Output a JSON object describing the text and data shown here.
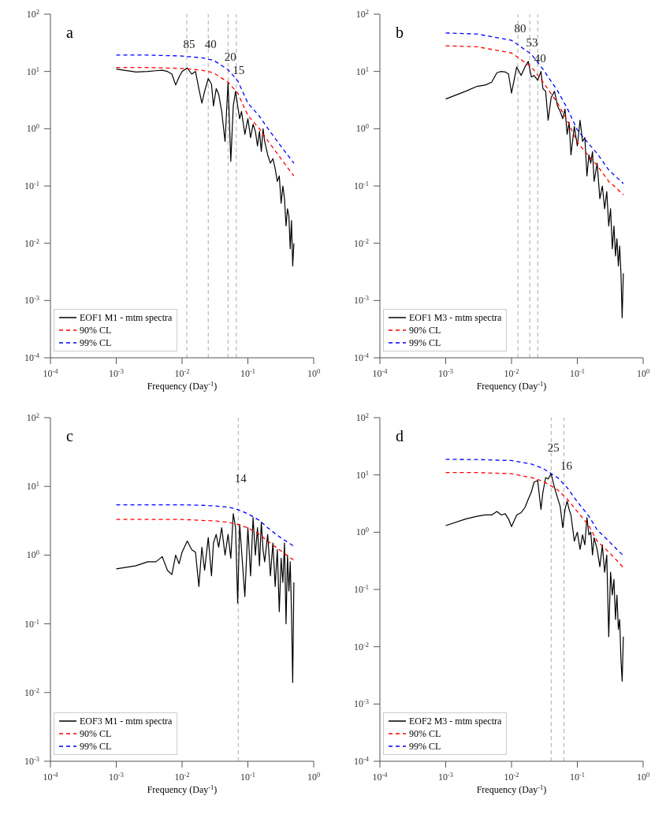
{
  "chart_data": [
    {
      "type": "line",
      "annotations": [
        "a",
        {
          "text": "85",
          "x": 0.0118,
          "y": 30
        },
        {
          "text": "40",
          "x": 0.025,
          "y": 30
        },
        {
          "text": "20",
          "x": 0.05,
          "y": 18
        },
        {
          "text": "15",
          "x": 0.0667,
          "y": 10.5
        }
      ],
      "xlabel": "Frequency (Day$^{-1}$)",
      "log": "xy",
      "grid": false,
      "legend": "bottom left",
      "xlim": [
        0.0001,
        1
      ],
      "xticks": [
        {
          "value": 0.0001,
          "label": "10$^{-4}$"
        },
        {
          "value": 0.001,
          "label": "10$^{-3}$"
        },
        {
          "value": 0.01,
          "label": "10$^{-2}$"
        },
        {
          "value": 0.1,
          "label": "10$^{-1}$"
        },
        {
          "value": 1,
          "label": "10$^{0}$"
        }
      ],
      "ylim": [
        0.0001,
        100
      ],
      "yticks": [
        {
          "value": 0.0001,
          "label": "10$^{-4}$"
        },
        {
          "value": 0.001,
          "label": "10$^{-3}$"
        },
        {
          "value": 0.01,
          "label": "10$^{-2}$"
        },
        {
          "value": 0.1,
          "label": "10$^{-1}$"
        },
        {
          "value": 1,
          "label": "10$^{0}$"
        },
        {
          "value": 10,
          "label": "10$^{1}$"
        },
        {
          "value": 100,
          "label": "10$^{2}$"
        }
      ],
      "ref_lines": [
        {
          "axis": "x",
          "value": 0.0118,
          "color": "#aaaaaa",
          "line_style": "dashed"
        },
        {
          "axis": "x",
          "value": 0.025,
          "color": "#aaaaaa",
          "line_style": "dashed"
        },
        {
          "axis": "x",
          "value": 0.05,
          "color": "#aaaaaa",
          "line_style": "dashed"
        },
        {
          "axis": "x",
          "value": 0.0667,
          "color": "#aaaaaa",
          "line_style": "dashed"
        }
      ],
      "series": [
        {
          "name": "EOF1 M1 - mtm spectra",
          "color": "#000000",
          "line_style": "solid",
          "x": [
            0.001,
            0.002,
            0.003,
            0.004,
            0.005,
            0.006,
            0.007,
            0.008,
            0.009,
            0.01,
            0.012,
            0.014,
            0.016,
            0.018,
            0.02,
            0.022,
            0.025,
            0.028,
            0.03,
            0.033,
            0.036,
            0.04,
            0.045,
            0.05,
            0.055,
            0.06,
            0.065,
            0.07,
            0.075,
            0.08,
            0.09,
            0.1,
            0.11,
            0.12,
            0.13,
            0.14,
            0.15,
            0.16,
            0.17,
            0.18,
            0.2,
            0.22,
            0.24,
            0.26,
            0.28,
            0.3,
            0.32,
            0.34,
            0.36,
            0.38,
            0.4,
            0.42,
            0.44,
            0.46,
            0.48,
            0.5
          ],
          "values": [
            11,
            9.8,
            10,
            10.3,
            10.5,
            10,
            9,
            5.8,
            8,
            10,
            11.5,
            9,
            10,
            5,
            2.8,
            4.5,
            7.5,
            6,
            2.5,
            5,
            4,
            2,
            0.6,
            6.5,
            0.27,
            2.5,
            4.5,
            2.5,
            1.5,
            2,
            0.8,
            1.5,
            0.7,
            1.2,
            0.9,
            0.5,
            0.9,
            0.4,
            1,
            0.6,
            0.35,
            0.25,
            0.3,
            0.2,
            0.12,
            0.15,
            0.05,
            0.1,
            0.06,
            0.02,
            0.04,
            0.03,
            0.008,
            0.025,
            0.004,
            0.01
          ]
        },
        {
          "name": "90% CL",
          "color": "#ff0000",
          "line_style": "dashed",
          "x": [
            0.001,
            0.003,
            0.01,
            0.02,
            0.03,
            0.05,
            0.07,
            0.1,
            0.15,
            0.2,
            0.3,
            0.4,
            0.5
          ],
          "values": [
            11.7,
            11.7,
            11.3,
            10.5,
            9.5,
            6.5,
            4.2,
            1.7,
            1,
            0.62,
            0.33,
            0.21,
            0.15
          ]
        },
        {
          "name": "99% CL",
          "color": "#0000ff",
          "line_style": "dashed",
          "x": [
            0.001,
            0.003,
            0.01,
            0.02,
            0.03,
            0.05,
            0.07,
            0.1,
            0.15,
            0.2,
            0.3,
            0.4,
            0.5
          ],
          "values": [
            19.3,
            19.3,
            18.6,
            17.3,
            15.7,
            10.7,
            6.9,
            2.8,
            1.65,
            1.02,
            0.54,
            0.35,
            0.25
          ]
        }
      ]
    },
    {
      "type": "line",
      "annotations": [
        "b",
        {
          "text": "80",
          "x": 0.0125,
          "y": 57
        },
        {
          "text": "53",
          "x": 0.0189,
          "y": 32
        },
        {
          "text": "40",
          "x": 0.025,
          "y": 17
        }
      ],
      "xlabel": "Frequency (Day$^{-1}$)",
      "log": "xy",
      "grid": false,
      "legend": "bottom left",
      "xlim": [
        0.0001,
        1
      ],
      "xticks": [
        {
          "value": 0.0001,
          "label": "10$^{-4}$"
        },
        {
          "value": 0.001,
          "label": "10$^{-3}$"
        },
        {
          "value": 0.01,
          "label": "10$^{-2}$"
        },
        {
          "value": 0.1,
          "label": "10$^{-1}$"
        },
        {
          "value": 1,
          "label": "10$^{0}$"
        }
      ],
      "ylim": [
        0.0001,
        100
      ],
      "yticks": [
        {
          "value": 0.0001,
          "label": "10$^{-4}$"
        },
        {
          "value": 0.001,
          "label": "10$^{-3}$"
        },
        {
          "value": 0.01,
          "label": "10$^{-2}$"
        },
        {
          "value": 0.1,
          "label": "10$^{-1}$"
        },
        {
          "value": 1,
          "label": "10$^{0}$"
        },
        {
          "value": 10,
          "label": "10$^{1}$"
        },
        {
          "value": 100,
          "label": "10$^{2}$"
        }
      ],
      "ref_lines": [
        {
          "axis": "x",
          "value": 0.0125,
          "color": "#aaaaaa",
          "line_style": "dashed"
        },
        {
          "axis": "x",
          "value": 0.0189,
          "color": "#aaaaaa",
          "line_style": "dashed"
        },
        {
          "axis": "x",
          "value": 0.025,
          "color": "#aaaaaa",
          "line_style": "dashed"
        }
      ],
      "series": [
        {
          "name": "EOF1 M3 - mtm spectra",
          "color": "#000000",
          "line_style": "solid",
          "x": [
            0.001,
            0.002,
            0.003,
            0.004,
            0.005,
            0.006,
            0.007,
            0.008,
            0.009,
            0.01,
            0.012,
            0.014,
            0.016,
            0.018,
            0.02,
            0.022,
            0.025,
            0.028,
            0.03,
            0.033,
            0.036,
            0.04,
            0.045,
            0.05,
            0.055,
            0.06,
            0.065,
            0.07,
            0.075,
            0.08,
            0.09,
            0.1,
            0.11,
            0.12,
            0.13,
            0.14,
            0.15,
            0.16,
            0.17,
            0.18,
            0.2,
            0.22,
            0.24,
            0.26,
            0.28,
            0.3,
            0.32,
            0.34,
            0.36,
            0.38,
            0.4,
            0.42,
            0.44,
            0.46,
            0.48,
            0.5
          ],
          "values": [
            3.3,
            4.5,
            5.5,
            5.8,
            6.5,
            9.5,
            10,
            9.8,
            9,
            4.2,
            12,
            8.5,
            12,
            15,
            8,
            8.5,
            7,
            10,
            5,
            4.5,
            1.4,
            3.5,
            4.5,
            2.5,
            2,
            1.5,
            2.2,
            0.8,
            1.3,
            0.35,
            1.1,
            0.5,
            1.4,
            0.6,
            0.7,
            0.15,
            0.35,
            0.25,
            0.4,
            0.12,
            0.25,
            0.06,
            0.1,
            0.04,
            0.08,
            0.02,
            0.04,
            0.008,
            0.02,
            0.006,
            0.012,
            0.004,
            0.009,
            0.003,
            0.0005,
            0.003
          ]
        },
        {
          "name": "90% CL",
          "color": "#ff0000",
          "line_style": "dashed",
          "x": [
            0.001,
            0.003,
            0.01,
            0.02,
            0.03,
            0.05,
            0.07,
            0.1,
            0.15,
            0.2,
            0.3,
            0.4,
            0.5
          ],
          "values": [
            28,
            27,
            21,
            12,
            6.6,
            2.8,
            1.4,
            0.58,
            0.33,
            0.23,
            0.12,
            0.09,
            0.07
          ]
        },
        {
          "name": "99% CL",
          "color": "#0000ff",
          "line_style": "dashed",
          "x": [
            0.001,
            0.003,
            0.01,
            0.02,
            0.03,
            0.05,
            0.07,
            0.1,
            0.15,
            0.2,
            0.3,
            0.4,
            0.5
          ],
          "values": [
            47,
            45,
            35,
            20,
            11,
            4.6,
            2.3,
            0.95,
            0.54,
            0.37,
            0.19,
            0.14,
            0.11
          ]
        }
      ]
    },
    {
      "type": "line",
      "annotations": [
        "c",
        {
          "text": "14",
          "x": 0.0714,
          "y": 13
        }
      ],
      "xlabel": "Frequency (Day$^{-1}$)",
      "log": "xy",
      "grid": false,
      "legend": "bottom left",
      "xlim": [
        0.0001,
        1
      ],
      "xticks": [
        {
          "value": 0.0001,
          "label": "10$^{-4}$"
        },
        {
          "value": 0.001,
          "label": "10$^{-3}$"
        },
        {
          "value": 0.01,
          "label": "10$^{-2}$"
        },
        {
          "value": 0.1,
          "label": "10$^{-1}$"
        },
        {
          "value": 1,
          "label": "10$^{0}$"
        }
      ],
      "ylim": [
        0.001,
        100
      ],
      "yticks": [
        {
          "value": 0.001,
          "label": "10$^{-3}$"
        },
        {
          "value": 0.01,
          "label": "10$^{-2}$"
        },
        {
          "value": 0.1,
          "label": "10$^{-1}$"
        },
        {
          "value": 1,
          "label": "10$^{0}$"
        },
        {
          "value": 10,
          "label": "10$^{1}$"
        },
        {
          "value": 100,
          "label": "10$^{2}$"
        }
      ],
      "ref_lines": [
        {
          "axis": "x",
          "value": 0.0714,
          "color": "#aaaaaa",
          "line_style": "dashed"
        }
      ],
      "series": [
        {
          "name": "EOF3 M1 - mtm spectra",
          "color": "#000000",
          "line_style": "solid",
          "x": [
            0.001,
            0.002,
            0.003,
            0.004,
            0.005,
            0.006,
            0.007,
            0.008,
            0.009,
            0.01,
            0.012,
            0.014,
            0.016,
            0.018,
            0.02,
            0.022,
            0.025,
            0.028,
            0.03,
            0.033,
            0.036,
            0.04,
            0.045,
            0.05,
            0.055,
            0.06,
            0.065,
            0.07,
            0.075,
            0.08,
            0.09,
            0.1,
            0.11,
            0.12,
            0.13,
            0.14,
            0.15,
            0.16,
            0.17,
            0.18,
            0.2,
            0.22,
            0.24,
            0.26,
            0.28,
            0.3,
            0.32,
            0.34,
            0.36,
            0.38,
            0.4,
            0.42,
            0.44,
            0.46,
            0.48,
            0.5
          ],
          "values": [
            0.63,
            0.7,
            0.8,
            0.8,
            0.95,
            0.6,
            0.52,
            1,
            0.75,
            1.1,
            1.6,
            1.2,
            1.1,
            0.35,
            1.3,
            0.6,
            1.8,
            0.5,
            1.5,
            2,
            1.3,
            2.5,
            1,
            2,
            0.9,
            4,
            2.5,
            0.2,
            2.8,
            1.2,
            0.25,
            2.5,
            0.5,
            3.5,
            1,
            2.5,
            0.7,
            3,
            1.2,
            0.8,
            2,
            0.5,
            1.5,
            0.35,
            1.2,
            0.15,
            0.9,
            0.4,
            1.5,
            0.1,
            1,
            0.3,
            0.8,
            0.15,
            0.014,
            0.4
          ]
        },
        {
          "name": "90% CL",
          "color": "#ff0000",
          "line_style": "dashed",
          "x": [
            0.001,
            0.003,
            0.01,
            0.02,
            0.03,
            0.05,
            0.07,
            0.1,
            0.15,
            0.2,
            0.3,
            0.4,
            0.5
          ],
          "values": [
            3.3,
            3.3,
            3.3,
            3.2,
            3.15,
            3,
            2.8,
            2.5,
            2,
            1.6,
            1.2,
            0.98,
            0.84
          ]
        },
        {
          "name": "99% CL",
          "color": "#0000ff",
          "line_style": "dashed",
          "x": [
            0.001,
            0.003,
            0.01,
            0.02,
            0.03,
            0.05,
            0.07,
            0.1,
            0.15,
            0.2,
            0.3,
            0.4,
            0.5
          ],
          "values": [
            5.4,
            5.4,
            5.4,
            5.3,
            5.2,
            5,
            4.6,
            4,
            3.2,
            2.5,
            1.85,
            1.55,
            1.34
          ]
        }
      ]
    },
    {
      "type": "line",
      "annotations": [
        "d",
        {
          "text": "25",
          "x": 0.04,
          "y": 30
        },
        {
          "text": "16",
          "x": 0.0625,
          "y": 14.6
        }
      ],
      "xlabel": "Frequency (Day$^{-1}$)",
      "log": "xy",
      "grid": false,
      "legend": "bottom left",
      "xlim": [
        0.0001,
        1
      ],
      "xticks": [
        {
          "value": 0.0001,
          "label": "10$^{-4}$"
        },
        {
          "value": 0.001,
          "label": "10$^{-3}$"
        },
        {
          "value": 0.01,
          "label": "10$^{-2}$"
        },
        {
          "value": 0.1,
          "label": "10$^{-1}$"
        },
        {
          "value": 1,
          "label": "10$^{0}$"
        }
      ],
      "ylim": [
        0.0001,
        100
      ],
      "yticks": [
        {
          "value": 0.0001,
          "label": "10$^{-4}$"
        },
        {
          "value": 0.001,
          "label": "10$^{-3}$"
        },
        {
          "value": 0.01,
          "label": "10$^{-2}$"
        },
        {
          "value": 0.1,
          "label": "10$^{-1}$"
        },
        {
          "value": 1,
          "label": "10$^{0}$"
        },
        {
          "value": 10,
          "label": "10$^{1}$"
        },
        {
          "value": 100,
          "label": "10$^{2}$"
        }
      ],
      "ref_lines": [
        {
          "axis": "x",
          "value": 0.04,
          "color": "#aaaaaa",
          "line_style": "dashed"
        },
        {
          "axis": "x",
          "value": 0.0625,
          "color": "#aaaaaa",
          "line_style": "dashed"
        }
      ],
      "series": [
        {
          "name": "EOF2 M3 - mtm spectra",
          "color": "#000000",
          "line_style": "solid",
          "x": [
            0.001,
            0.002,
            0.003,
            0.004,
            0.005,
            0.006,
            0.007,
            0.008,
            0.009,
            0.01,
            0.012,
            0.014,
            0.016,
            0.018,
            0.02,
            0.022,
            0.025,
            0.028,
            0.03,
            0.033,
            0.036,
            0.04,
            0.045,
            0.05,
            0.055,
            0.06,
            0.065,
            0.07,
            0.075,
            0.08,
            0.09,
            0.1,
            0.11,
            0.12,
            0.13,
            0.14,
            0.15,
            0.16,
            0.17,
            0.18,
            0.2,
            0.22,
            0.24,
            0.26,
            0.28,
            0.3,
            0.32,
            0.34,
            0.36,
            0.38,
            0.4,
            0.42,
            0.44,
            0.46,
            0.48,
            0.5
          ],
          "values": [
            1.3,
            1.7,
            1.9,
            2,
            2,
            2.3,
            2,
            2.1,
            1.7,
            1.25,
            2,
            2.2,
            2.7,
            3.8,
            5,
            7.5,
            8,
            2.5,
            5,
            9,
            8.5,
            10.5,
            6,
            4,
            2.8,
            1.2,
            2.5,
            3.5,
            2.5,
            2,
            0.7,
            1,
            0.5,
            0.9,
            0.6,
            1.8,
            0.9,
            1,
            0.4,
            0.8,
            0.5,
            0.25,
            0.6,
            0.2,
            0.4,
            0.015,
            0.2,
            0.08,
            0.15,
            0.03,
            0.08,
            0.02,
            0.03,
            0.006,
            0.0025,
            0.015
          ]
        },
        {
          "name": "90% CL",
          "color": "#ff0000",
          "line_style": "dashed",
          "x": [
            0.001,
            0.003,
            0.01,
            0.02,
            0.03,
            0.05,
            0.07,
            0.1,
            0.15,
            0.2,
            0.3,
            0.4,
            0.5
          ],
          "values": [
            11,
            11,
            10.5,
            9,
            7.8,
            5.5,
            3.8,
            2.3,
            1.3,
            0.7,
            0.45,
            0.32,
            0.24
          ]
        },
        {
          "name": "99% CL",
          "color": "#0000ff",
          "line_style": "dashed",
          "x": [
            0.001,
            0.003,
            0.01,
            0.02,
            0.03,
            0.05,
            0.07,
            0.1,
            0.15,
            0.2,
            0.3,
            0.4,
            0.5
          ],
          "values": [
            18.7,
            18.6,
            17.8,
            15.5,
            13,
            9,
            6,
            3.4,
            1.9,
            1.1,
            0.7,
            0.5,
            0.39
          ]
        }
      ]
    }
  ]
}
